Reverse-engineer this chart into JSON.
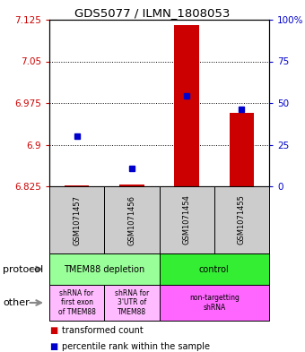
{
  "title": "GDS5077 / ILMN_1808053",
  "samples": [
    "GSM1071457",
    "GSM1071456",
    "GSM1071454",
    "GSM1071455"
  ],
  "red_values": [
    6.827,
    6.829,
    7.115,
    6.958
  ],
  "blue_values": [
    6.915,
    6.858,
    6.988,
    6.963
  ],
  "ylim": [
    6.825,
    7.125
  ],
  "yticks_left": [
    6.825,
    6.9,
    6.975,
    7.05,
    7.125
  ],
  "yticks_right": [
    0,
    25,
    50,
    75,
    100
  ],
  "ytick_labels_left": [
    "6.825",
    "6.9",
    "6.975",
    "7.05",
    "7.125"
  ],
  "ytick_labels_right": [
    "0",
    "25",
    "50",
    "75",
    "100%"
  ],
  "protocol_labels": [
    "TMEM88 depletion",
    "control"
  ],
  "protocol_colors": [
    "#99ff99",
    "#33ee33"
  ],
  "other_labels": [
    "shRNA for\nfirst exon\nof TMEM88",
    "shRNA for\n3'UTR of\nTMEM88",
    "non-targetting\nshRNA"
  ],
  "other_colors": [
    "#ffbbff",
    "#ffbbff",
    "#ff66ff"
  ],
  "bar_color_red": "#cc0000",
  "bar_color_blue": "#0000cc",
  "bg_color": "#ffffff",
  "left_label_color": "#cc0000",
  "right_label_color": "#0000cc",
  "sample_box_color": "#cccccc",
  "legend_red_label": "transformed count",
  "legend_blue_label": "percentile rank within the sample"
}
